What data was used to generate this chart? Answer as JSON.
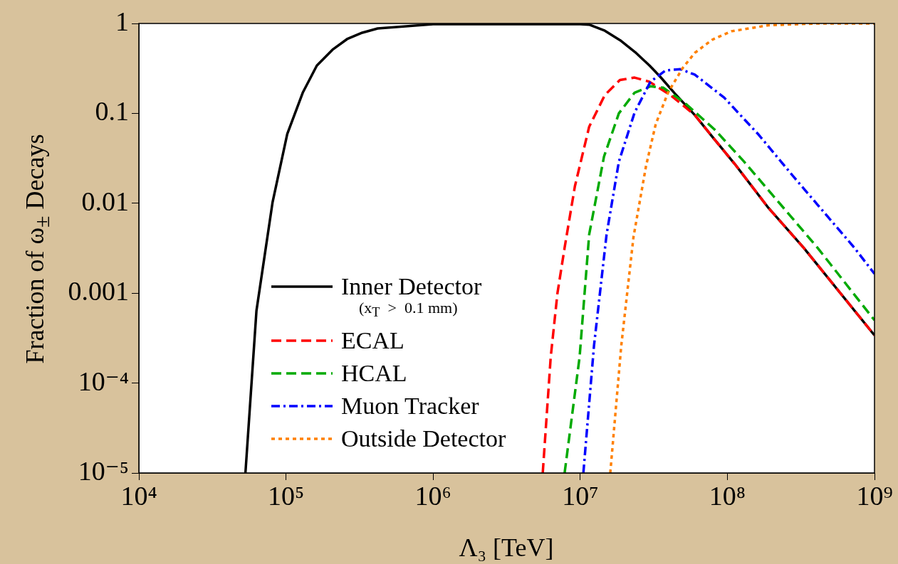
{
  "chart_data": {
    "type": "line",
    "xlabel": "Λ₃ [TeV]",
    "ylabel": "Fraction of ω$_{±}$ Decays",
    "log": "xy",
    "grid": false,
    "legend": "bottom left",
    "marker": "none",
    "xlim": [
      10000,
      1000000000
    ],
    "ylim": [
      1e-05,
      1
    ],
    "xticks": [
      {
        "value": 10000,
        "label": "10⁴"
      },
      {
        "value": 100000,
        "label": "10⁵"
      },
      {
        "value": 1000000,
        "label": "10⁶"
      },
      {
        "value": 10000000,
        "label": "10⁷"
      },
      {
        "value": 100000000,
        "label": "10⁸"
      },
      {
        "value": 1000000000,
        "label": "10⁹"
      }
    ],
    "yticks": [
      {
        "value": 1e-05,
        "label": "10⁻⁵"
      },
      {
        "value": 0.0001,
        "label": "10⁻⁴"
      },
      0.001,
      0.01,
      0.1,
      1
    ],
    "annotations": [
      "(x$_{T}$  >  0.1 mm)"
    ],
    "series": [
      {
        "name": "Inner Detector",
        "color": "#000000",
        "line_style": "solid",
        "x": [
          53000,
          63000,
          81000,
          102000,
          130000,
          162000,
          207000,
          260000,
          330000,
          420000,
          1000000,
          10000000,
          11500000,
          14700000,
          18700000,
          23600000,
          29600000,
          35000000,
          44000000,
          60000000,
          82000000,
          112000000,
          190000000,
          330000000,
          1000000000
        ],
        "values": [
          1e-05,
          0.00064,
          0.0102,
          0.059,
          0.17,
          0.34,
          0.51,
          0.67,
          0.79,
          0.88,
          0.98,
          0.98,
          0.97,
          0.83,
          0.65,
          0.48,
          0.34,
          0.255,
          0.166,
          0.096,
          0.051,
          0.0275,
          0.0089,
          0.0032,
          0.00034
        ]
      },
      {
        "name": "ECAL",
        "color": "#ff0000",
        "line_style": "dashed",
        "x": [
          5560000,
          6300000,
          7000000,
          7830000,
          9200000,
          11500000,
          14700000,
          18600000,
          23400000,
          29500000,
          41000000,
          60000000,
          82000000,
          112000000,
          190000000,
          330000000,
          1000000000
        ],
        "values": [
          1e-05,
          0.000195,
          0.001,
          0.0032,
          0.0155,
          0.071,
          0.16,
          0.235,
          0.25,
          0.225,
          0.16,
          0.096,
          0.051,
          0.0275,
          0.0089,
          0.0032,
          0.00034
        ]
      },
      {
        "name": "HCAL",
        "color": "#00aa00",
        "line_style": "dashed",
        "x": [
          7830000,
          9900000,
          11500000,
          14500000,
          18300000,
          23400000,
          30000000,
          36600000,
          51000000,
          82000000,
          130000000,
          410000000,
          1000000000
        ],
        "values": [
          1e-05,
          0.000195,
          0.0045,
          0.033,
          0.1,
          0.17,
          0.2,
          0.193,
          0.132,
          0.066,
          0.029,
          0.0032,
          0.0005
        ]
      },
      {
        "name": "Muon Tracker",
        "color": "#0000ff",
        "line_style": "dashdot",
        "x": [
          10500000,
          12400000,
          15100000,
          18300000,
          23400000,
          30000000,
          38000000,
          48000000,
          60000000,
          95000000,
          163000000,
          280000000,
          730000000,
          1000000000
        ],
        "values": [
          1e-05,
          0.00026,
          0.0045,
          0.029,
          0.102,
          0.225,
          0.3,
          0.31,
          0.27,
          0.15,
          0.058,
          0.02,
          0.0032,
          0.00164
        ]
      },
      {
        "name": "Outside Detector",
        "color": "#ff8000",
        "line_style": "dotted",
        "x": [
          16000000,
          19000000,
          23000000,
          28000000,
          32600000,
          39500000,
          49700000,
          60000000,
          79000000,
          107000000,
          190000000,
          410000000,
          1000000000
        ],
        "values": [
          1e-05,
          0.00026,
          0.0042,
          0.026,
          0.076,
          0.17,
          0.32,
          0.47,
          0.66,
          0.82,
          0.955,
          1,
          1
        ]
      }
    ]
  }
}
